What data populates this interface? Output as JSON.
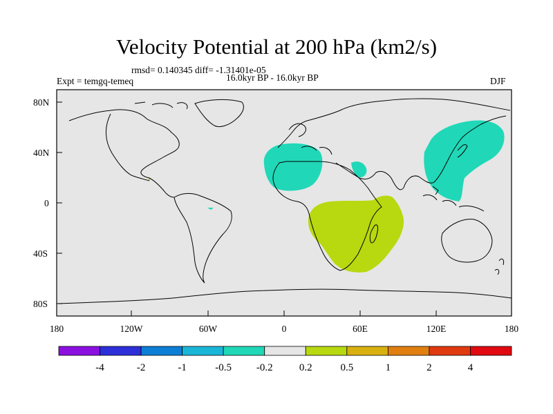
{
  "title": "Velocity Potential at 200 hPa (km2/s)",
  "stats": "rmsd= 0.140345 diff= -1.31401e-05",
  "expt": "Expt = temgq-temeq",
  "period": "16.0kyr BP - 16.0kyr BP",
  "season": "DJF",
  "lat_labels": [
    "80N",
    "40N",
    "0",
    "40S",
    "80S"
  ],
  "lon_labels": [
    "180",
    "120W",
    "60W",
    "0",
    "60E",
    "120E",
    "180"
  ],
  "colorbar": {
    "labels": [
      "-4",
      "-2",
      "-1",
      "-0.5",
      "-0.2",
      "0.2",
      "0.5",
      "1",
      "2",
      "4"
    ],
    "colors": [
      "#8a10e0",
      "#2d2fd8",
      "#0d7ed6",
      "#1ab6d8",
      "#20d8b8",
      "#e6e6e6",
      "#b8d810",
      "#d8b010",
      "#e07e10",
      "#e03a10",
      "#e00a10"
    ]
  },
  "colors": {
    "ocean_background": "#e6e6e6",
    "negative_anomaly": "#20d8b8",
    "positive_anomaly": "#b8d810",
    "coastline": "#000000"
  }
}
